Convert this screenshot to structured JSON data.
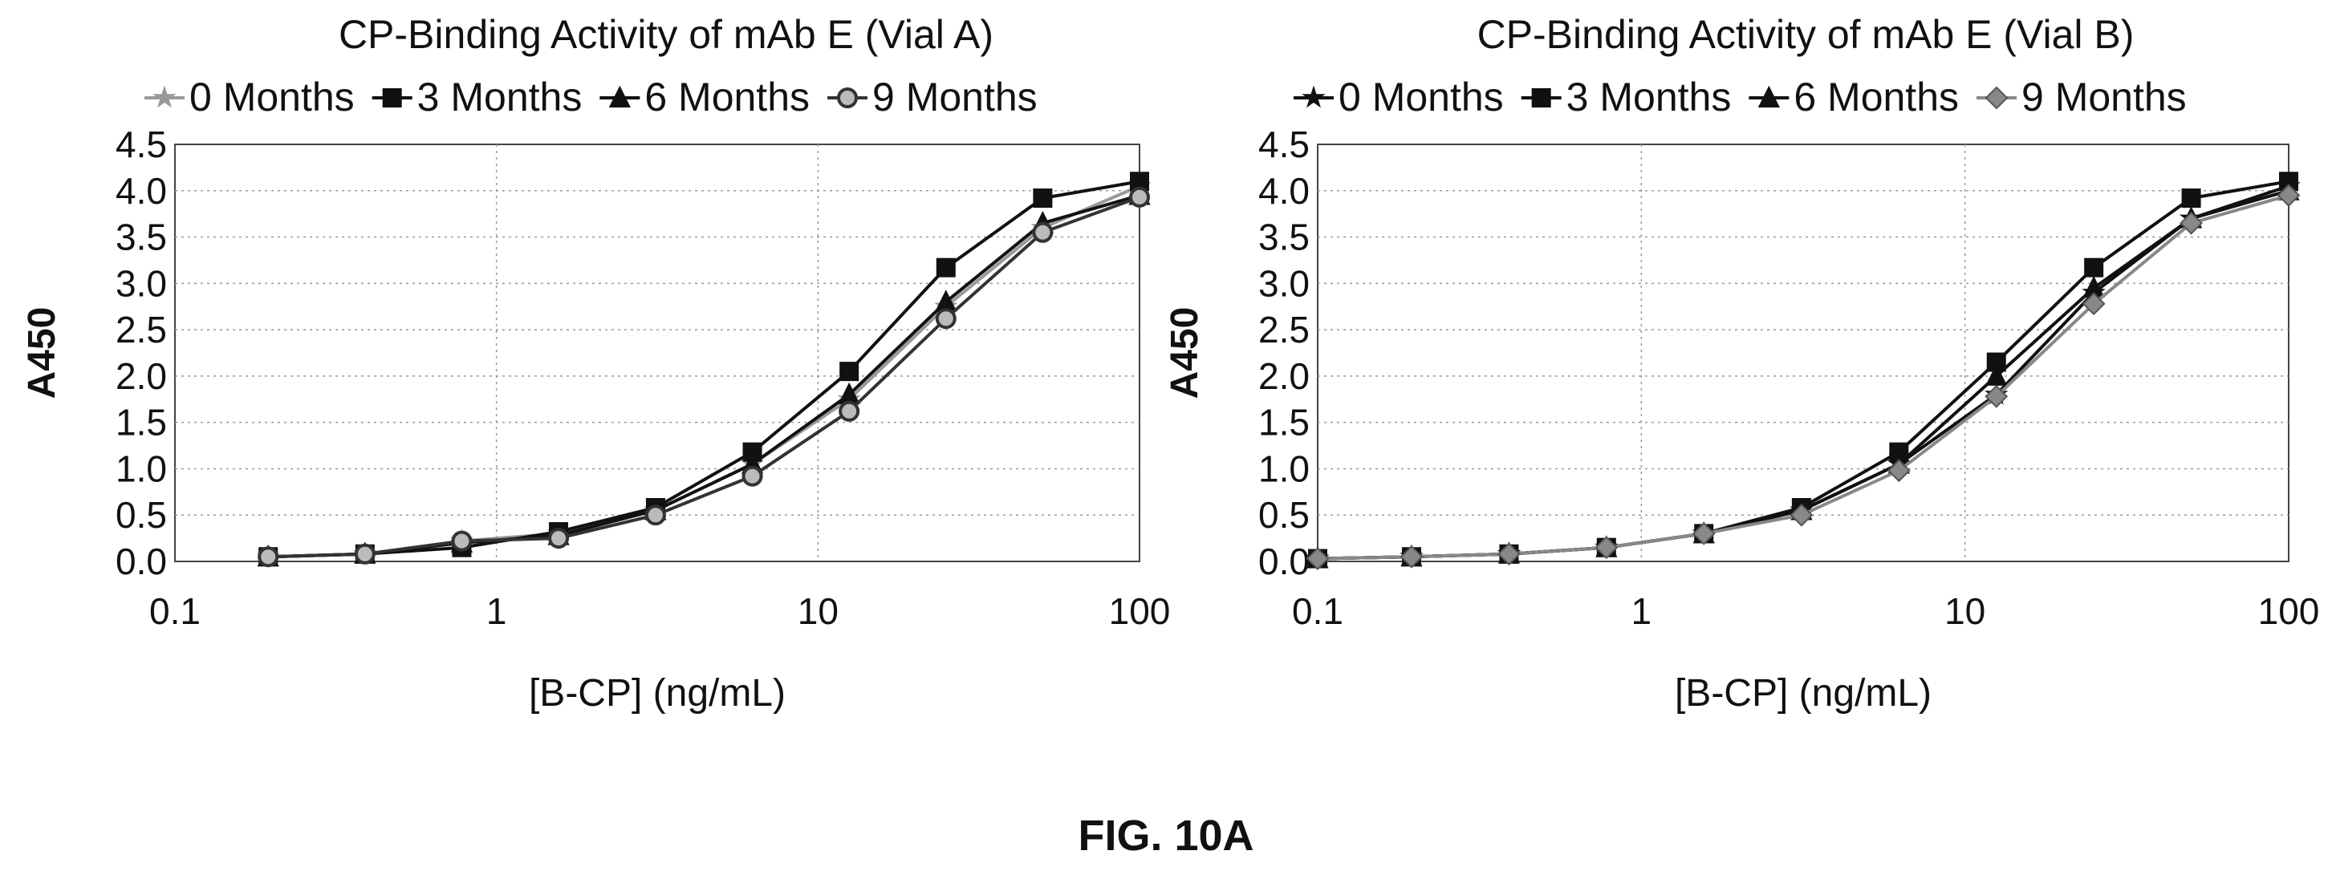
{
  "caption": "FIG. 10A",
  "chart_data": [
    {
      "type": "line",
      "title": "CP-Binding Activity of mAb E (Vial A)",
      "xlabel": "[B-CP] (ng/mL)",
      "ylabel": "A450",
      "xscale": "log",
      "xlim": [
        0.1,
        100
      ],
      "ylim": [
        0,
        4.5
      ],
      "xticks": [
        "0.1",
        "1",
        "10",
        "100"
      ],
      "yticks": [
        "0.0",
        "0.5",
        "1.0",
        "1.5",
        "2.0",
        "2.5",
        "3.0",
        "3.5",
        "4.0",
        "4.5"
      ],
      "grid": true,
      "legend": "top",
      "series": [
        {
          "name": "0 Months",
          "marker": "star",
          "color": "#999999",
          "x": [
            0.195,
            0.39,
            0.78,
            1.56,
            3.125,
            6.25,
            12.5,
            25,
            50,
            100
          ],
          "y": [
            0.05,
            0.08,
            0.22,
            0.3,
            0.55,
            1.05,
            1.75,
            2.75,
            3.6,
            4.05
          ]
        },
        {
          "name": "3 Months",
          "marker": "square",
          "color": "#111111",
          "x": [
            0.195,
            0.39,
            0.78,
            1.56,
            3.125,
            6.25,
            12.5,
            25,
            50,
            100
          ],
          "y": [
            0.05,
            0.08,
            0.15,
            0.32,
            0.58,
            1.18,
            2.05,
            3.17,
            3.92,
            4.1
          ]
        },
        {
          "name": "6 Months",
          "marker": "triangle",
          "color": "#111111",
          "x": [
            0.195,
            0.39,
            0.78,
            1.56,
            3.125,
            6.25,
            12.5,
            25,
            50,
            100
          ],
          "y": [
            0.05,
            0.08,
            0.2,
            0.28,
            0.55,
            1.05,
            1.8,
            2.8,
            3.65,
            3.95
          ]
        },
        {
          "name": "9 Months",
          "marker": "circle",
          "color": "#333333",
          "x": [
            0.195,
            0.39,
            0.78,
            1.56,
            3.125,
            6.25,
            12.5,
            25,
            50,
            100
          ],
          "y": [
            0.05,
            0.08,
            0.22,
            0.25,
            0.5,
            0.92,
            1.62,
            2.62,
            3.55,
            3.93
          ]
        }
      ]
    },
    {
      "type": "line",
      "title": "CP-Binding Activity of mAb E (Vial B)",
      "xlabel": "[B-CP] (ng/mL)",
      "ylabel": "A450",
      "xscale": "log",
      "xlim": [
        0.1,
        100
      ],
      "ylim": [
        0,
        4.5
      ],
      "xticks": [
        "0.1",
        "1",
        "10",
        "100"
      ],
      "yticks": [
        "0.0",
        "0.5",
        "1.0",
        "1.5",
        "2.0",
        "2.5",
        "3.0",
        "3.5",
        "4.0",
        "4.5"
      ],
      "grid": true,
      "legend": "top",
      "series": [
        {
          "name": "0 Months",
          "marker": "star",
          "color": "#111111",
          "x": [
            0.1,
            0.195,
            0.39,
            0.78,
            1.56,
            3.125,
            6.25,
            12.5,
            25,
            50,
            100
          ],
          "y": [
            0.03,
            0.05,
            0.08,
            0.15,
            0.3,
            0.55,
            1.05,
            1.8,
            2.9,
            3.7,
            4.05
          ]
        },
        {
          "name": "3 Months",
          "marker": "square",
          "color": "#111111",
          "x": [
            0.1,
            0.195,
            0.39,
            0.78,
            1.56,
            3.125,
            6.25,
            12.5,
            25,
            50,
            100
          ],
          "y": [
            0.03,
            0.05,
            0.08,
            0.15,
            0.3,
            0.58,
            1.18,
            2.15,
            3.17,
            3.92,
            4.1
          ]
        },
        {
          "name": "6 Months",
          "marker": "triangle",
          "color": "#111111",
          "x": [
            0.1,
            0.195,
            0.39,
            0.78,
            1.56,
            3.125,
            6.25,
            12.5,
            25,
            50,
            100
          ],
          "y": [
            0.03,
            0.05,
            0.08,
            0.15,
            0.3,
            0.55,
            1.05,
            2.0,
            2.95,
            3.7,
            4.0
          ]
        },
        {
          "name": "9 Months",
          "marker": "diamond",
          "color": "#888888",
          "x": [
            0.1,
            0.195,
            0.39,
            0.78,
            1.56,
            3.125,
            6.25,
            12.5,
            25,
            50,
            100
          ],
          "y": [
            0.03,
            0.05,
            0.08,
            0.15,
            0.3,
            0.5,
            0.98,
            1.78,
            2.78,
            3.65,
            3.95
          ]
        }
      ]
    }
  ]
}
